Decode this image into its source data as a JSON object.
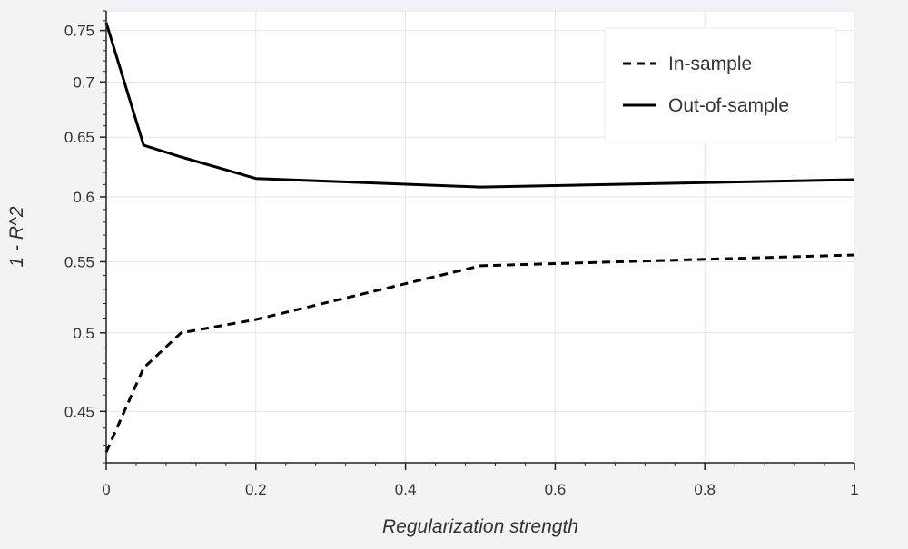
{
  "chart_data": {
    "type": "line",
    "title": "",
    "xlabel": "Regularization strength",
    "ylabel": "1 - R^2",
    "y_scale": "log",
    "xlim": [
      0,
      1
    ],
    "ylim": [
      0.42,
      0.77
    ],
    "x_ticks": [
      {
        "value": 0,
        "label": "0"
      },
      {
        "value": 0.2,
        "label": "0.2"
      },
      {
        "value": 0.4,
        "label": "0.4"
      },
      {
        "value": 0.6,
        "label": "0.6"
      },
      {
        "value": 0.8,
        "label": "0.8"
      },
      {
        "value": 1,
        "label": "1"
      }
    ],
    "y_ticks": [
      {
        "value": 0.45,
        "label": "0.45"
      },
      {
        "value": 0.5,
        "label": "0.5"
      },
      {
        "value": 0.55,
        "label": "0.55"
      },
      {
        "value": 0.6,
        "label": "0.6"
      },
      {
        "value": 0.65,
        "label": "0.65"
      },
      {
        "value": 0.7,
        "label": "0.7"
      },
      {
        "value": 0.75,
        "label": "0.75"
      }
    ],
    "grid": true,
    "legend_position": "top-right",
    "series": [
      {
        "name": "In-sample",
        "line_style": "dashed",
        "color": "#000000",
        "x": [
          0,
          0.05,
          0.1,
          0.2,
          0.5,
          1
        ],
        "y": [
          0.426,
          0.477,
          0.5,
          0.509,
          0.547,
          0.555
        ]
      },
      {
        "name": "Out-of-sample",
        "line_style": "solid",
        "color": "#000000",
        "x": [
          0,
          0.05,
          0.1,
          0.2,
          0.5,
          1
        ],
        "y": [
          0.758,
          0.643,
          0.633,
          0.615,
          0.608,
          0.614
        ]
      }
    ],
    "colors": {
      "background": "#f3f3f5",
      "plot_background": "#ffffff",
      "grid": "#e4e4e4",
      "axis": "#222222",
      "text": "#333333"
    }
  }
}
